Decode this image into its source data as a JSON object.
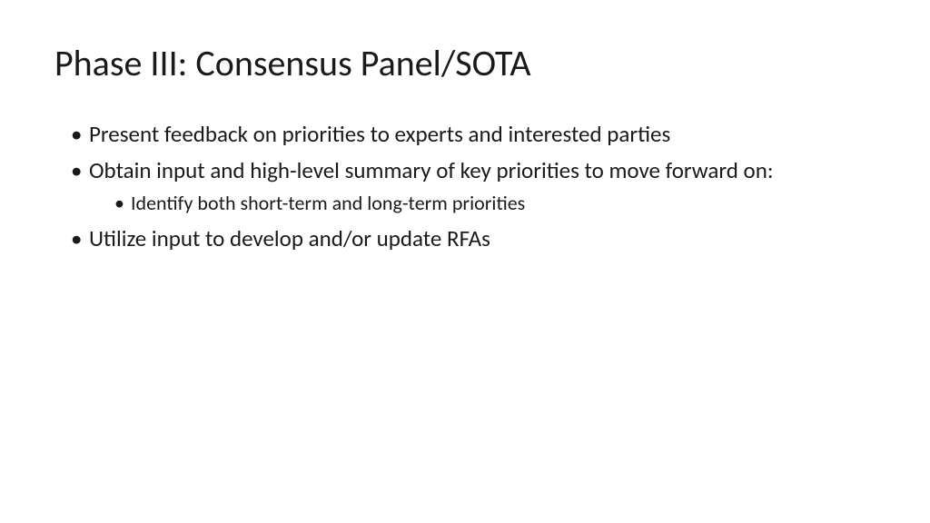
{
  "slide": {
    "title": "Phase III: Consensus Panel/SOTA",
    "bullets": [
      {
        "text": "Present feedback on priorities to experts and interested parties",
        "children": []
      },
      {
        "text": "Obtain input and high-level summary of key priorities to move forward on:",
        "children": [
          {
            "text": "Identify both short-term and long-term priorities"
          }
        ]
      },
      {
        "text": "Utilize input to develop and/or update RFAs",
        "children": []
      }
    ],
    "styling": {
      "background_color": "#ffffff",
      "text_color": "#1a1a1a",
      "title_fontsize": 40,
      "bullet_fontsize": 25,
      "subbullet_fontsize": 22,
      "font_family": "Calibri"
    }
  }
}
